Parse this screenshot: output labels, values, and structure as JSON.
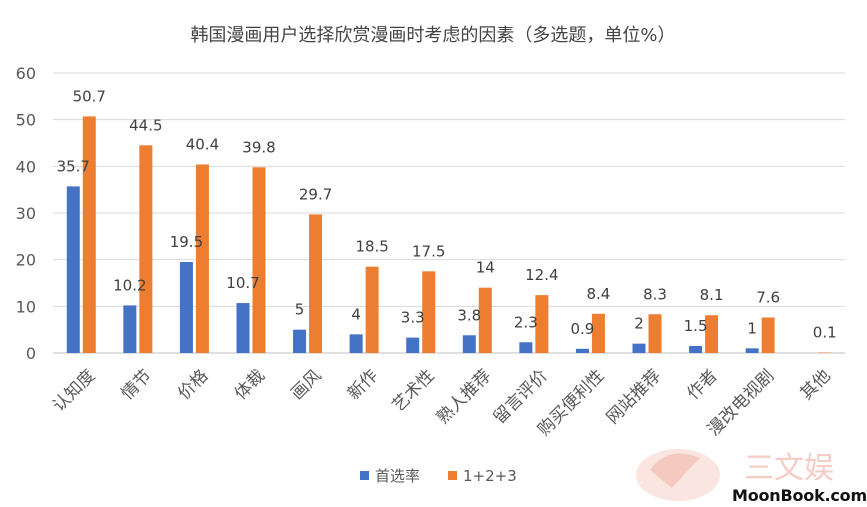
{
  "chart_data": {
    "type": "bar",
    "title": "韩国漫画用户选择欣赏漫画时考虑的因素（多选题，单位%）",
    "categories": [
      "认知度",
      "情节",
      "价格",
      "体裁",
      "画风",
      "新作",
      "艺术性",
      "熟人推荐",
      "留言评价",
      "购买便利性",
      "网站推荐",
      "作者",
      "漫改电视剧",
      "其他"
    ],
    "series": [
      {
        "name": "首选率",
        "color": "#4472C4",
        "values": [
          35.7,
          10.2,
          19.5,
          10.7,
          5,
          4,
          3.3,
          3.8,
          2.3,
          0.9,
          2,
          1.5,
          1,
          null
        ]
      },
      {
        "name": "1+2+3",
        "color": "#ED7D31",
        "values": [
          50.7,
          44.5,
          40.4,
          39.8,
          29.7,
          18.5,
          17.5,
          14,
          12.4,
          8.4,
          8.3,
          8.1,
          7.6,
          0.1
        ]
      }
    ],
    "yticks": [
      "0",
      "10",
      "20",
      "30",
      "40",
      "50",
      "60"
    ],
    "ylim": [
      0,
      60
    ],
    "grid": true,
    "legend_position": "bottom"
  },
  "watermark": {
    "logo_text": "三文娱",
    "site": "MoonBook.com"
  }
}
